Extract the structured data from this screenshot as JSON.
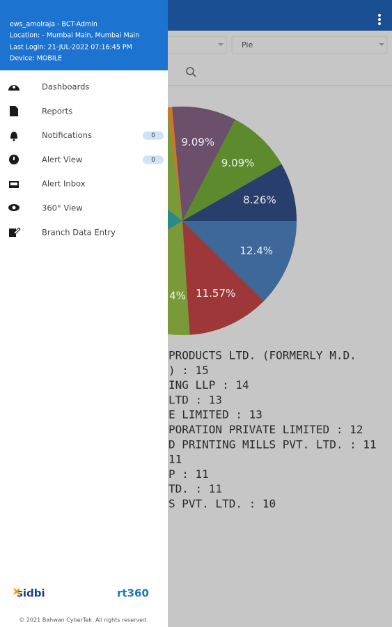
{
  "app_bar": {
    "chart_type": "Pie"
  },
  "pie": {
    "slices": [
      {
        "value": 9.09,
        "label": "9.09%",
        "color": "#6b4f6b"
      },
      {
        "value": 9.09,
        "label": "9.09%",
        "color": "#5e8a2e"
      },
      {
        "value": 8.26,
        "label": "8.26%",
        "color": "#283f6e"
      },
      {
        "value": 12.4,
        "label": "12.4%",
        "color": "#3e679a"
      },
      {
        "value": 11.57,
        "label": "11.57%",
        "color": "#9e3838"
      }
    ],
    "partial_label": "4%"
  },
  "legend_lines": [
    "PRODUCTS LTD. (FORMERLY M.D.",
    ") : 15",
    "ING LLP : 14",
    "LTD : 13",
    "E LIMITED : 13",
    "PORATION PRIVATE LIMITED : 12",
    "D PRINTING MILLS PVT. LTD. : 11",
    "11",
    "P : 11",
    "TD. : 11",
    "S PVT. LTD. : 10"
  ],
  "drawer": {
    "user": "ews_amolraja - BCT-Admin",
    "location": "Location: - Mumbai Main, Mumbai Main",
    "last_login": "Last Login: 21-JUL-2022 07:16:45 PM",
    "device": "Device: MOBILE",
    "menu": [
      {
        "label": "Dashboards"
      },
      {
        "label": "Reports"
      },
      {
        "label": "Notifications",
        "badge": 0
      },
      {
        "label": "Alert View",
        "badge": 0
      },
      {
        "label": "Alert Inbox"
      },
      {
        "label": "360° View"
      },
      {
        "label": "Branch Data Entry"
      }
    ],
    "logos": [
      "sidbi",
      "rt360"
    ],
    "copyright": "© 2021 Bahwan CyberTek. All rights reserved."
  }
}
